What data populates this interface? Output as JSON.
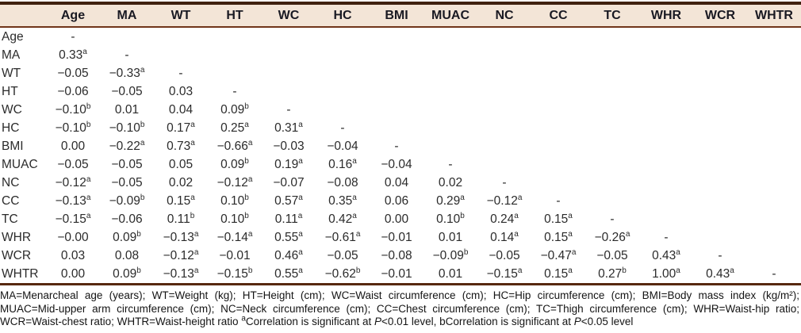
{
  "colors": {
    "header_background": "#f3e5d7",
    "top_border": "#40210f",
    "header_underline": "#70351a",
    "bottom_border": "#57280f",
    "text": "#2b2b2b"
  },
  "chart_data": {
    "type": "table",
    "columns": [
      "Age",
      "MA",
      "WT",
      "HT",
      "WC",
      "HC",
      "BMI",
      "MUAC",
      "NC",
      "CC",
      "TC",
      "WHR",
      "WCR",
      "WHTR"
    ],
    "rows": [
      {
        "label": "Age",
        "values": [
          "-"
        ]
      },
      {
        "label": "MA",
        "values": [
          "0.33^a",
          "-"
        ]
      },
      {
        "label": "WT",
        "values": [
          "−0.05",
          "−0.33^a",
          "-"
        ]
      },
      {
        "label": "HT",
        "values": [
          "−0.06",
          "−0.05",
          "0.03",
          "-"
        ]
      },
      {
        "label": "WC",
        "values": [
          "−0.10^b",
          "0.01",
          "0.04",
          "0.09^b",
          "-"
        ]
      },
      {
        "label": "HC",
        "values": [
          "−0.10^b",
          "−0.10^b",
          "0.17^a",
          "0.25^a",
          "0.31^a",
          "-"
        ]
      },
      {
        "label": "BMI",
        "values": [
          "0.00",
          "−0.22^a",
          "0.73^a",
          "−0.66^a",
          "−0.03",
          "−0.04",
          "-"
        ]
      },
      {
        "label": "MUAC",
        "values": [
          "−0.05",
          "−0.05",
          "0.05",
          "0.09^b",
          "0.19^a",
          "0.16^a",
          "−0.04",
          "-"
        ]
      },
      {
        "label": "NC",
        "values": [
          "−0.12^a",
          "−0.05",
          "0.02",
          "−0.12^a",
          "−0.07",
          "−0.08",
          "0.04",
          "0.02",
          "-"
        ]
      },
      {
        "label": "CC",
        "values": [
          "−0.13^a",
          "−0.09^b",
          "0.15^a",
          "0.10^b",
          "0.57^a",
          "0.35^a",
          "0.06",
          "0.29^a",
          "−0.12^a",
          "-"
        ]
      },
      {
        "label": "TC",
        "values": [
          "−0.15^a",
          "−0.06",
          "0.11^b",
          "0.10^b",
          "0.11^a",
          "0.42^a",
          "0.00",
          "0.10^b",
          "0.24^a",
          "0.15^a",
          "-"
        ]
      },
      {
        "label": "WHR",
        "values": [
          "−0.00",
          "0.09^b",
          "−0.13^a",
          "−0.14^a",
          "0.55^a",
          "−0.61^a",
          "−0.01",
          "0.01",
          "0.14^a",
          "0.15^a",
          "−0.26^a",
          "-"
        ]
      },
      {
        "label": "WCR",
        "values": [
          "0.03",
          "0.08",
          "−0.12^a",
          "−0.01",
          "0.46^a",
          "−0.05",
          "−0.08",
          "−0.09^b",
          "−0.05",
          "−0.47^a",
          "−0.05",
          "0.43^a",
          "-"
        ]
      },
      {
        "label": "WHTR",
        "values": [
          "0.00",
          "0.09^b",
          "−0.13^a",
          "−0.15^b",
          "0.55^a",
          "−0.62^b",
          "−0.01",
          "0.01",
          "−0.15^a",
          "0.15^a",
          "0.27^b",
          "1.00^a",
          "0.43^a",
          "-"
        ]
      }
    ]
  },
  "footnote": {
    "abbreviations": "MA=Menarcheal age (years); WT=Weight (kg); HT=Height (cm); WC=Waist circumference (cm); HC=Hip circumference (cm); BMI=Body mass index (kg/m²); MUAC=Mid-upper arm circumference (cm); NC=Neck circumference (cm); CC=Chest circumference (cm); TC=Thigh circumference (cm); WHR=Waist-hip ratio; WCR=Waist-chest ratio; WHTR=Waist-height ratio ",
    "sup_a": "a",
    "sig_a_pre": "Correlation is significant at ",
    "p_italic": "P",
    "sig_a_post": "<0.01 level, bCorrelation is significant at ",
    "sig_b_post": "<0.05 level"
  }
}
